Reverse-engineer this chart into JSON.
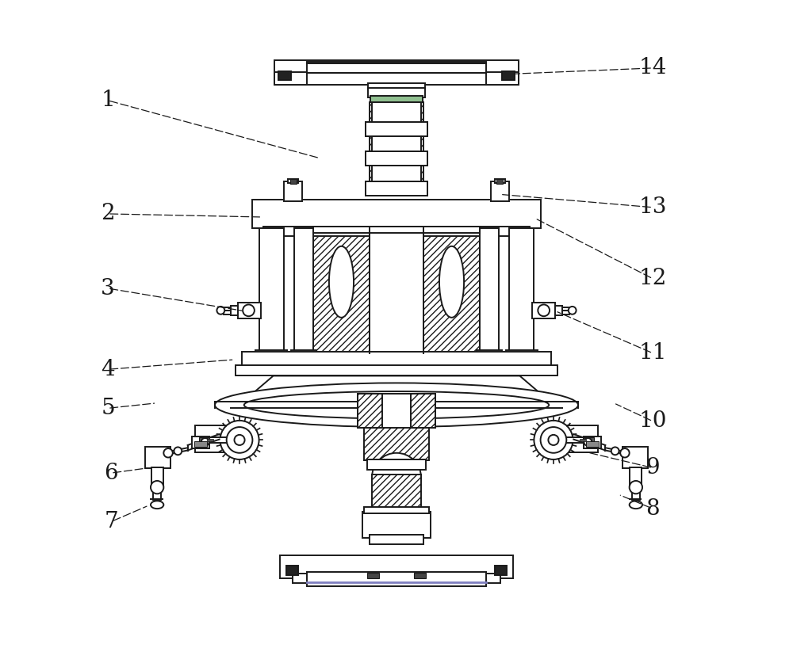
{
  "bg_color": "#ffffff",
  "lc": "#1a1a1a",
  "lw": 1.4,
  "label_fs": 20,
  "label_color": "#1a1a1a",
  "annotations": {
    "1": {
      "lp": [
        0.055,
        0.845
      ],
      "ae": [
        0.385,
        0.755
      ]
    },
    "2": {
      "lp": [
        0.055,
        0.67
      ],
      "ae": [
        0.295,
        0.665
      ]
    },
    "3": {
      "lp": [
        0.055,
        0.555
      ],
      "ae": [
        0.265,
        0.52
      ]
    },
    "4": {
      "lp": [
        0.055,
        0.43
      ],
      "ae": [
        0.25,
        0.445
      ]
    },
    "5": {
      "lp": [
        0.055,
        0.37
      ],
      "ae": [
        0.13,
        0.378
      ]
    },
    "6": {
      "lp": [
        0.06,
        0.27
      ],
      "ae": [
        0.118,
        0.278
      ]
    },
    "7": {
      "lp": [
        0.06,
        0.195
      ],
      "ae": [
        0.118,
        0.22
      ]
    },
    "8": {
      "lp": [
        0.895,
        0.215
      ],
      "ae": [
        0.842,
        0.237
      ]
    },
    "9": {
      "lp": [
        0.895,
        0.278
      ],
      "ae": [
        0.79,
        0.303
      ]
    },
    "10": {
      "lp": [
        0.895,
        0.35
      ],
      "ae": [
        0.835,
        0.378
      ]
    },
    "11": {
      "lp": [
        0.895,
        0.455
      ],
      "ae": [
        0.745,
        0.52
      ]
    },
    "12": {
      "lp": [
        0.895,
        0.57
      ],
      "ae": [
        0.71,
        0.665
      ]
    },
    "13": {
      "lp": [
        0.895,
        0.68
      ],
      "ae": [
        0.66,
        0.7
      ]
    },
    "14": {
      "lp": [
        0.895,
        0.895
      ],
      "ae": [
        0.68,
        0.886
      ]
    }
  }
}
